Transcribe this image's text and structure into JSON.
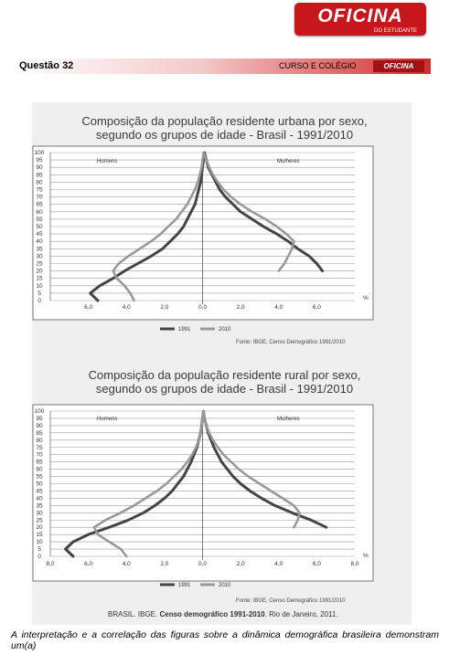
{
  "header": {
    "logo_text": "OFICINA",
    "logo_subtext": "DO ESTUDANTE",
    "question": "Questão  32",
    "course": "CURSO E COLÉGIO",
    "mini_logo": "OFICINA"
  },
  "chart_data": [
    {
      "type": "line",
      "title_line1": "Composição da população residente urbana por sexo,",
      "title_line2": "segundo os grupos de idade - Brasil - 1991/2010",
      "left_label": "Homens",
      "right_label": "Mulheres",
      "y_ticks": [
        "0",
        "5",
        "10",
        "15",
        "20",
        "25",
        "30",
        "35",
        "40",
        "45",
        "50",
        "55",
        "60",
        "65",
        "70",
        "75",
        "80",
        "85",
        "90",
        "95",
        "100"
      ],
      "x_ticks": [
        "6,0",
        "4,0",
        "2,0",
        "0,0",
        "2,0",
        "4,0",
        "6,0"
      ],
      "x_unit": "%",
      "xlim": [
        -8,
        8
      ],
      "ylim": [
        0,
        100
      ],
      "series": [
        {
          "name": "1991",
          "color": "#444444",
          "x": [
            -5.5,
            -5.9,
            -5.4,
            -4.7,
            -4.1,
            -3.4,
            -2.7,
            -2.1,
            -1.7,
            -1.3,
            -1.0,
            -0.8,
            -0.6,
            -0.4,
            -0.3,
            -0.2,
            -0.1,
            -0.05,
            0,
            0.05,
            0.1,
            0.2,
            0.3,
            0.5,
            0.7,
            0.9,
            1.2,
            1.6,
            2.0,
            2.6,
            3.2,
            3.9,
            4.5,
            5.0,
            5.6,
            6.0,
            6.3
          ],
          "y": [
            0,
            5,
            10,
            15,
            20,
            25,
            30,
            35,
            40,
            45,
            50,
            55,
            60,
            65,
            70,
            75,
            80,
            85,
            90,
            95,
            100,
            95,
            90,
            85,
            80,
            75,
            70,
            65,
            60,
            55,
            50,
            45,
            40,
            35,
            30,
            25,
            20
          ]
        },
        {
          "name": "2010",
          "color": "#999999",
          "x": [
            -3.6,
            -3.8,
            -4.1,
            -4.5,
            -4.7,
            -4.4,
            -3.9,
            -3.3,
            -2.7,
            -2.2,
            -1.8,
            -1.4,
            -1.1,
            -0.8,
            -0.6,
            -0.4,
            -0.25,
            -0.15,
            -0.05,
            0,
            0.05,
            0.2,
            0.35,
            0.55,
            0.8,
            1.1,
            1.5,
            2.0,
            2.6,
            3.3,
            3.9,
            4.4,
            4.8,
            4.7,
            4.5,
            4.3,
            4.0
          ],
          "y": [
            0,
            5,
            10,
            15,
            20,
            25,
            30,
            35,
            40,
            45,
            50,
            55,
            60,
            65,
            70,
            75,
            80,
            85,
            90,
            95,
            100,
            95,
            90,
            85,
            80,
            75,
            70,
            65,
            60,
            55,
            50,
            45,
            40,
            35,
            30,
            25,
            20
          ]
        }
      ],
      "legend": [
        "1991",
        "2010"
      ],
      "source": "Fonte: IBGE, Censo Demográfico 1991/2010"
    },
    {
      "type": "line",
      "title_line1": "Composição da população residente rural por sexo,",
      "title_line2": "segundo os grupos de idade - Brasil - 1991/2010",
      "left_label": "Homens",
      "right_label": "Mulheres",
      "y_ticks": [
        "0",
        "5",
        "10",
        "15",
        "20",
        "25",
        "30",
        "35",
        "40",
        "45",
        "50",
        "55",
        "60",
        "65",
        "70",
        "75",
        "80",
        "85",
        "90",
        "95",
        "100"
      ],
      "x_ticks": [
        "8,0",
        "6,0",
        "4,0",
        "2,0",
        "0,0",
        "2,0",
        "4,0",
        "6,0",
        "8,0"
      ],
      "x_unit": "%",
      "xlim": [
        -8,
        8
      ],
      "ylim": [
        0,
        100
      ],
      "series": [
        {
          "name": "1991",
          "color": "#444444",
          "x": [
            -6.8,
            -7.2,
            -6.8,
            -6.0,
            -4.9,
            -3.9,
            -3.1,
            -2.5,
            -2.0,
            -1.6,
            -1.3,
            -1.0,
            -0.8,
            -0.6,
            -0.45,
            -0.3,
            -0.2,
            -0.1,
            -0.05,
            0,
            0.05,
            0.1,
            0.2,
            0.3,
            0.45,
            0.6,
            0.8,
            1.0,
            1.3,
            1.6,
            2.0,
            2.5,
            3.1,
            3.8,
            4.7,
            5.7,
            6.5
          ],
          "y": [
            0,
            5,
            10,
            15,
            20,
            25,
            30,
            35,
            40,
            45,
            50,
            55,
            60,
            65,
            70,
            75,
            80,
            85,
            90,
            95,
            100,
            95,
            90,
            85,
            80,
            75,
            70,
            65,
            60,
            55,
            50,
            45,
            40,
            35,
            30,
            25,
            20
          ]
        },
        {
          "name": "2010",
          "color": "#999999",
          "x": [
            -4.0,
            -4.3,
            -4.9,
            -5.5,
            -5.7,
            -5.1,
            -4.3,
            -3.6,
            -3.0,
            -2.4,
            -1.9,
            -1.5,
            -1.1,
            -0.8,
            -0.55,
            -0.35,
            -0.2,
            -0.1,
            -0.05,
            0,
            0.05,
            0.1,
            0.2,
            0.35,
            0.55,
            0.8,
            1.1,
            1.5,
            1.9,
            2.4,
            3.0,
            3.6,
            4.2,
            4.8,
            5.1,
            5.0,
            4.8
          ],
          "y": [
            0,
            5,
            10,
            15,
            20,
            25,
            30,
            35,
            40,
            45,
            50,
            55,
            60,
            65,
            70,
            75,
            80,
            85,
            90,
            95,
            100,
            95,
            90,
            85,
            80,
            75,
            70,
            65,
            60,
            55,
            50,
            45,
            40,
            35,
            30,
            25,
            20
          ]
        }
      ],
      "legend": [
        "1991",
        "2010"
      ],
      "source": "Fonte: IBGE, Censo Demográfico 1991/2010"
    }
  ],
  "credit": {
    "prefix": "BRASIL. IBGE. ",
    "bold": "Censo demográfico 1991-2010",
    "suffix": ". Rio de Janeiro, 2011."
  },
  "question_text": "A interpretação e a correlação das figuras sobre a dinâmica demográfica brasileira demonstram um(a)"
}
